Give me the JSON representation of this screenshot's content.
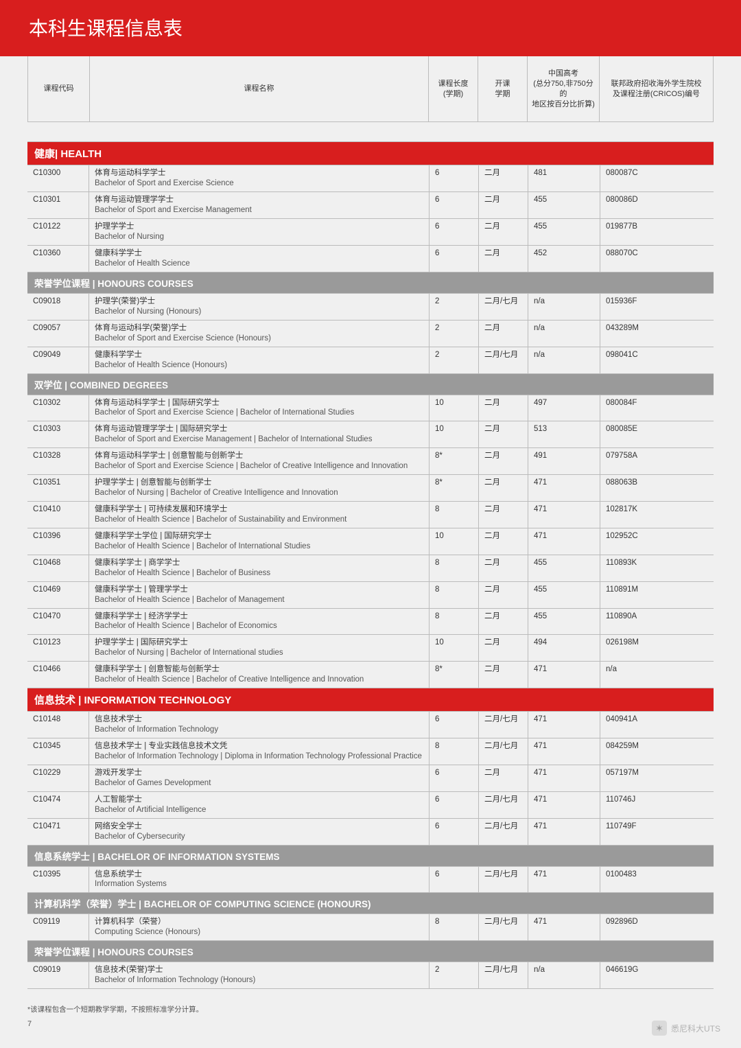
{
  "title": "本科生课程信息表",
  "headers": {
    "code": "课程代码",
    "name": "课程名称",
    "dur1": "课程长度",
    "dur2": "(学期)",
    "sem1": "开课",
    "sem2": "学期",
    "gk1": "中国高考",
    "gk2": "(总分750,非750分的",
    "gk3": "地区按百分比折算)",
    "cri1": "联邦政府招收海外学生院校",
    "cri2": "及课程注册(CRICOS)编号"
  },
  "sections": [
    {
      "type": "category",
      "label": "健康| HEALTH"
    },
    {
      "type": "row",
      "code": "C10300",
      "name_cn": "体育与运动科学学士",
      "name_en": "Bachelor of Sport and Exercise Science",
      "dur": "6",
      "sem": "二月",
      "gk": "481",
      "cri": "080087C"
    },
    {
      "type": "row",
      "code": "C10301",
      "name_cn": "体育与运动管理学学士",
      "name_en": "Bachelor of Sport and Exercise Management",
      "dur": "6",
      "sem": "二月",
      "gk": "455",
      "cri": "080086D"
    },
    {
      "type": "row",
      "code": "C10122",
      "name_cn": "护理学学士",
      "name_en": "Bachelor of Nursing",
      "dur": "6",
      "sem": "二月",
      "gk": "455",
      "cri": "019877B"
    },
    {
      "type": "row",
      "code": "C10360",
      "name_cn": "健康科学学士",
      "name_en": "Bachelor of Health Science",
      "dur": "6",
      "sem": "二月",
      "gk": "452",
      "cri": "088070C"
    },
    {
      "type": "sub",
      "label": "荣誉学位课程 | HONOURS COURSES"
    },
    {
      "type": "row",
      "code": "C09018",
      "name_cn": "护理学(荣誉)学士",
      "name_en": "Bachelor of Nursing (Honours)",
      "dur": "2",
      "sem": "二月/七月",
      "gk": "n/a",
      "cri": "015936F"
    },
    {
      "type": "row",
      "code": "C09057",
      "name_cn": "体育与运动科学(荣誉)学士",
      "name_en": "Bachelor of Sport and Exercise Science (Honours)",
      "dur": "2",
      "sem": "二月",
      "gk": "n/a",
      "cri": "043289M"
    },
    {
      "type": "row",
      "code": "C09049",
      "name_cn": "健康科学学士",
      "name_en": "Bachelor of Health Science (Honours)",
      "dur": "2",
      "sem": "二月/七月",
      "gk": "n/a",
      "cri": "098041C"
    },
    {
      "type": "sub",
      "label": "双学位 | COMBINED DEGREES"
    },
    {
      "type": "row",
      "code": "C10302",
      "name_cn": "体育与运动科学学士 | 国际研究学士",
      "name_en": "Bachelor of Sport and Exercise Science | Bachelor of International Studies",
      "dur": "10",
      "sem": "二月",
      "gk": "497",
      "cri": "080084F"
    },
    {
      "type": "row",
      "code": "C10303",
      "name_cn": "体育与运动管理学学士 | 国际研究学士",
      "name_en": "Bachelor of Sport and Exercise Management | Bachelor of  International Studies",
      "dur": "10",
      "sem": "二月",
      "gk": "513",
      "cri": "080085E"
    },
    {
      "type": "row",
      "code": "C10328",
      "name_cn": "体育与运动科学学士 | 创意智能与创新学士",
      "name_en": "Bachelor of Sport and Exercise Science | Bachelor of Creative Intelligence and Innovation",
      "dur": "8*",
      "sem": "二月",
      "gk": "491",
      "cri": "079758A"
    },
    {
      "type": "row",
      "code": "C10351",
      "name_cn": "护理学学士 | 创意智能与创新学士",
      "name_en": "Bachelor of Nursing | Bachelor of Creative Intelligence and Innovation",
      "dur": "8*",
      "sem": "二月",
      "gk": "471",
      "cri": "088063B"
    },
    {
      "type": "row",
      "code": "C10410",
      "name_cn": "健康科学学士 | 可持续发展和环境学士",
      "name_en": "Bachelor of Health Science | Bachelor of Sustainability and Environment",
      "dur": "8",
      "sem": "二月",
      "gk": "471",
      "cri": "102817K"
    },
    {
      "type": "row",
      "code": "C10396",
      "name_cn": "健康科学学士学位 | 国际研究学士",
      "name_en": "Bachelor of Health Science | Bachelor of International Studies",
      "dur": "10",
      "sem": "二月",
      "gk": "471",
      "cri": "102952C"
    },
    {
      "type": "row",
      "code": "C10468",
      "name_cn": "健康科学学士 | 商学学士",
      "name_en": "Bachelor of Health Science | Bachelor of Business",
      "dur": "8",
      "sem": "二月",
      "gk": "455",
      "cri": "110893K"
    },
    {
      "type": "row",
      "code": "C10469",
      "name_cn": "健康科学学士 | 管理学学士",
      "name_en": "Bachelor of Health Science | Bachelor of Management",
      "dur": "8",
      "sem": "二月",
      "gk": "455",
      "cri": "110891M"
    },
    {
      "type": "row",
      "code": "C10470",
      "name_cn": "健康科学学士 | 经济学学士",
      "name_en": "Bachelor of Health Science | Bachelor of Economics",
      "dur": "8",
      "sem": "二月",
      "gk": "455",
      "cri": "110890A"
    },
    {
      "type": "row",
      "code": "C10123",
      "name_cn": "护理学学士 | 国际研究学士",
      "name_en": "Bachelor of Nursing | Bachelor of International studies",
      "dur": "10",
      "sem": "二月",
      "gk": "494",
      "cri": "026198M"
    },
    {
      "type": "row",
      "code": "C10466",
      "name_cn": "健康科学学士 | 创意智能与创新学士",
      "name_en": "Bachelor of Health Science | Bachelor of Creative Intelligence and Innovation",
      "dur": "8*",
      "sem": "二月",
      "gk": "471",
      "cri": "n/a"
    },
    {
      "type": "category",
      "label": "信息技术 | INFORMATION TECHNOLOGY"
    },
    {
      "type": "row",
      "code": "C10148",
      "name_cn": "信息技术学士",
      "name_en": "Bachelor of Information Technology",
      "dur": "6",
      "sem": "二月/七月",
      "gk": "471",
      "cri": "040941A"
    },
    {
      "type": "row",
      "code": "C10345",
      "name_cn": "信息技术学士  | 专业实践信息技术文凭",
      "name_en": "Bachelor of Information Technology  | Diploma in Information Technology Professional Practice",
      "dur": "8",
      "sem": "二月/七月",
      "gk": "471",
      "cri": "084259M"
    },
    {
      "type": "row",
      "code": "C10229",
      "name_cn": "游戏开发学士",
      "name_en": "Bachelor of Games Development",
      "dur": "6",
      "sem": "二月",
      "gk": "471",
      "cri": "057197M"
    },
    {
      "type": "row",
      "code": "C10474",
      "name_cn": "人工智能学士",
      "name_en": "Bachelor of Artificial Intelligence",
      "dur": "6",
      "sem": "二月/七月",
      "gk": "471",
      "cri": "110746J"
    },
    {
      "type": "row",
      "code": "C10471",
      "name_cn": "网络安全学士",
      "name_en": "Bachelor of Cybersecurity",
      "dur": "6",
      "sem": "二月/七月",
      "gk": "471",
      "cri": "110749F"
    },
    {
      "type": "sub",
      "label": "信息系统学士 | BACHELOR OF INFORMATION SYSTEMS"
    },
    {
      "type": "row",
      "code": "C10395",
      "name_cn": "信息系统学士",
      "name_en": "Information Systems",
      "dur": "6",
      "sem": "二月/七月",
      "gk": "471",
      "cri": "0100483"
    },
    {
      "type": "sub",
      "label": "计算机科学（荣誉）学士 | BACHELOR OF COMPUTING SCIENCE (HONOURS)"
    },
    {
      "type": "row",
      "code": "C09119",
      "name_cn": "计算机科学（荣誉）",
      "name_en": "Computing Science (Honours)",
      "dur": "8",
      "sem": "二月/七月",
      "gk": "471",
      "cri": "092896D"
    },
    {
      "type": "sub",
      "label": "荣誉学位课程 | HONOURS COURSES"
    },
    {
      "type": "row",
      "code": "C09019",
      "name_cn": "信息技术(荣誉)学士",
      "name_en": "Bachelor of Information Technology (Honours)",
      "dur": "2",
      "sem": "二月/七月",
      "gk": "n/a",
      "cri": "046619G"
    }
  ],
  "footnote": "*该课程包含一个短期教学学期，不按照标准学分计算。",
  "page_number": "7",
  "watermark_text": "悉尼科大UTS",
  "colors": {
    "accent_red": "#d81e1e",
    "sub_gray": "#9a9a9a",
    "border": "#bbbbbb",
    "bg": "#f0f0f0"
  }
}
